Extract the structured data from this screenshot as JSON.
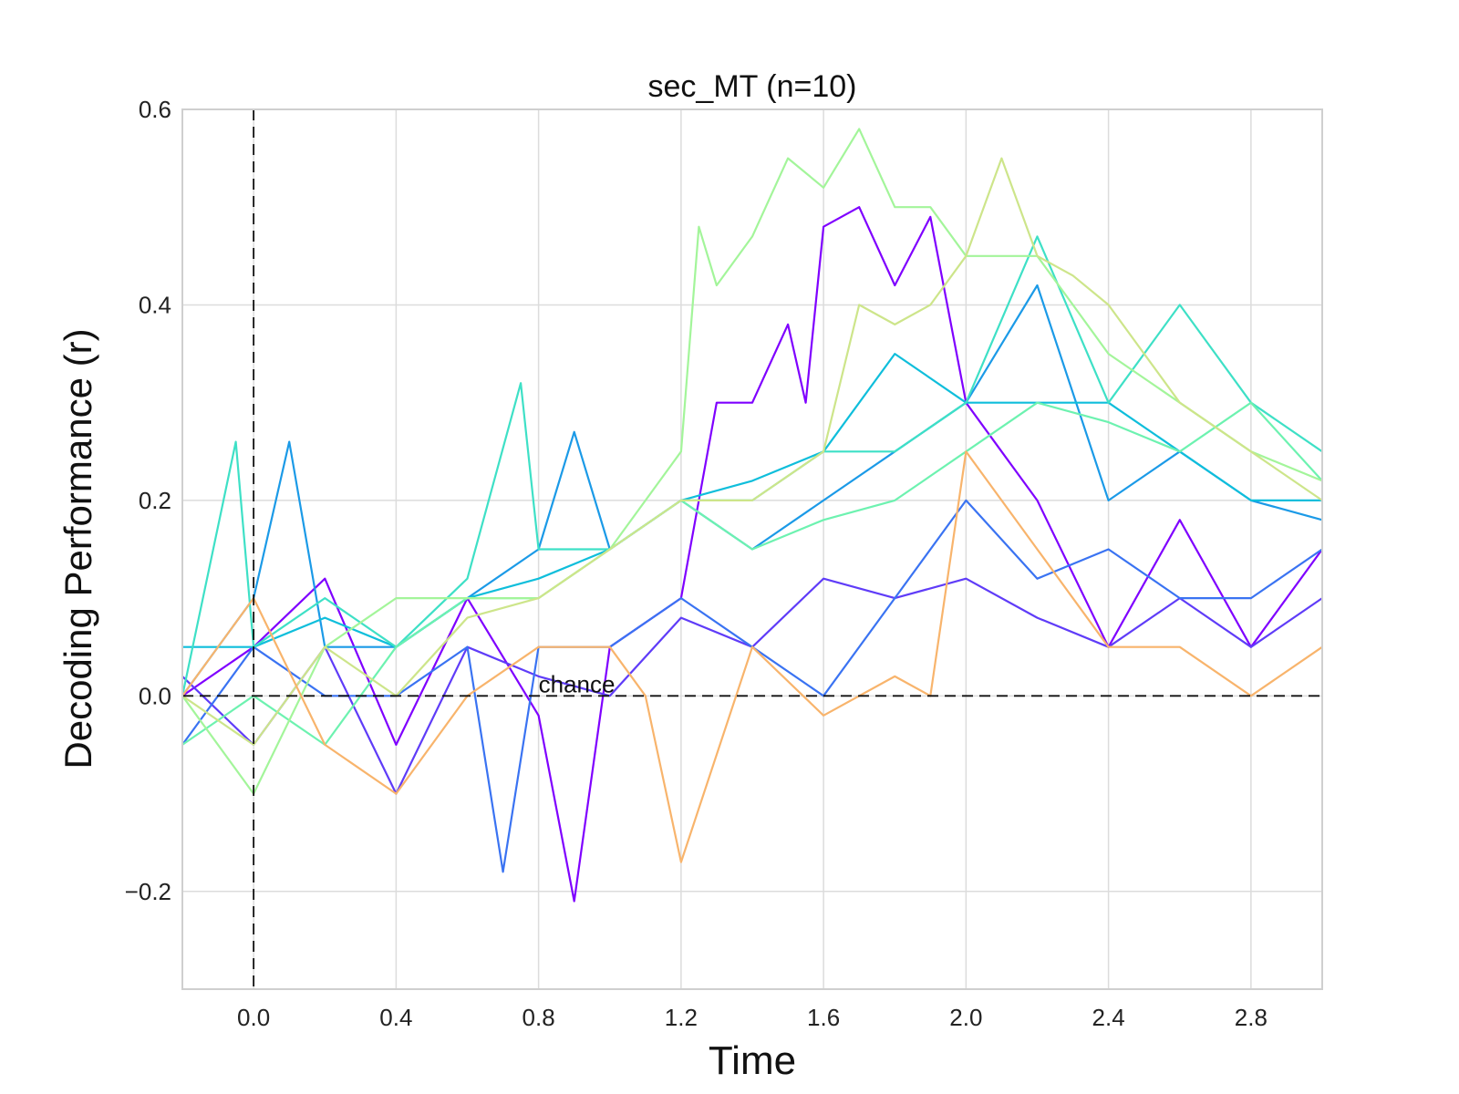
{
  "chart_data": {
    "type": "line",
    "title": "sec_MT (n=10)",
    "xlabel": "Time",
    "ylabel": "Decoding Performance (r)",
    "xlim": [
      -0.2,
      3.0
    ],
    "ylim": [
      -0.3,
      0.6
    ],
    "xticks": [
      "0.0",
      "0.4",
      "0.8",
      "1.2",
      "1.6",
      "2.0",
      "2.4",
      "2.8"
    ],
    "yticks": [
      "−0.2",
      "0.0",
      "0.2",
      "0.4",
      "0.6"
    ],
    "grid": true,
    "reference_lines": {
      "horizontal": {
        "y": 0.0,
        "label": "chance",
        "label_x": 0.8,
        "style": "dashed"
      },
      "vertical": {
        "x": 0.0,
        "style": "dashed"
      }
    },
    "series_colors": [
      "#7f00ff",
      "#5f3cf8",
      "#3a73f2",
      "#1b9ae7",
      "#0fbedb",
      "#3ee0c6",
      "#6df2b0",
      "#a3f59a",
      "#cde58a",
      "#f8b46c"
    ],
    "series": [
      {
        "color": "#7f00ff",
        "x": [
          -0.2,
          0.0,
          0.2,
          0.4,
          0.6,
          0.8,
          0.9,
          1.0,
          1.2,
          1.3,
          1.4,
          1.5,
          1.55,
          1.6,
          1.7,
          1.8,
          1.9,
          2.0,
          2.1,
          2.2,
          2.4,
          2.6,
          2.8,
          3.0
        ],
        "y": [
          0.0,
          0.05,
          0.12,
          -0.05,
          0.1,
          -0.02,
          -0.21,
          0.05,
          0.1,
          0.3,
          0.3,
          0.38,
          0.3,
          0.48,
          0.5,
          0.42,
          0.49,
          0.3,
          0.25,
          0.2,
          0.05,
          0.18,
          0.05,
          0.15
        ]
      },
      {
        "color": "#5f3cf8",
        "x": [
          -0.2,
          0.0,
          0.2,
          0.4,
          0.6,
          0.8,
          1.0,
          1.2,
          1.4,
          1.6,
          1.8,
          2.0,
          2.2,
          2.4,
          2.6,
          2.8,
          3.0
        ],
        "y": [
          0.02,
          -0.05,
          0.05,
          -0.1,
          0.05,
          0.02,
          0.0,
          0.08,
          0.05,
          0.12,
          0.1,
          0.12,
          0.08,
          0.05,
          0.1,
          0.05,
          0.1
        ]
      },
      {
        "color": "#3a73f2",
        "x": [
          -0.2,
          0.0,
          0.2,
          0.4,
          0.6,
          0.7,
          0.8,
          1.0,
          1.2,
          1.4,
          1.6,
          1.8,
          2.0,
          2.2,
          2.4,
          2.6,
          2.8,
          3.0
        ],
        "y": [
          -0.05,
          0.05,
          0.0,
          0.0,
          0.05,
          -0.18,
          0.05,
          0.05,
          0.1,
          0.05,
          0.0,
          0.1,
          0.2,
          0.12,
          0.15,
          0.1,
          0.1,
          0.15
        ]
      },
      {
        "color": "#1b9ae7",
        "x": [
          -0.2,
          0.0,
          0.1,
          0.2,
          0.4,
          0.6,
          0.8,
          0.9,
          1.0,
          1.2,
          1.4,
          1.6,
          1.8,
          2.0,
          2.2,
          2.4,
          2.6,
          2.8,
          3.0
        ],
        "y": [
          0.0,
          0.1,
          0.26,
          0.05,
          0.05,
          0.1,
          0.15,
          0.27,
          0.15,
          0.2,
          0.15,
          0.2,
          0.25,
          0.3,
          0.42,
          0.2,
          0.25,
          0.2,
          0.18
        ]
      },
      {
        "color": "#0fbedb",
        "x": [
          -0.2,
          0.0,
          0.2,
          0.4,
          0.6,
          0.8,
          1.0,
          1.2,
          1.4,
          1.6,
          1.8,
          2.0,
          2.2,
          2.4,
          2.6,
          2.8,
          3.0
        ],
        "y": [
          0.05,
          0.05,
          0.08,
          0.05,
          0.1,
          0.12,
          0.15,
          0.2,
          0.22,
          0.25,
          0.35,
          0.3,
          0.3,
          0.3,
          0.25,
          0.2,
          0.2
        ]
      },
      {
        "color": "#3ee0c6",
        "x": [
          -0.2,
          -0.05,
          0.0,
          0.2,
          0.4,
          0.6,
          0.75,
          0.8,
          1.0,
          1.2,
          1.4,
          1.6,
          1.8,
          2.0,
          2.2,
          2.4,
          2.6,
          2.8,
          3.0
        ],
        "y": [
          0.0,
          0.26,
          0.05,
          0.1,
          0.05,
          0.12,
          0.32,
          0.15,
          0.15,
          0.2,
          0.2,
          0.25,
          0.25,
          0.3,
          0.47,
          0.3,
          0.4,
          0.3,
          0.25
        ]
      },
      {
        "color": "#6df2b0",
        "x": [
          -0.2,
          0.0,
          0.2,
          0.4,
          0.6,
          0.8,
          1.0,
          1.2,
          1.4,
          1.6,
          1.8,
          2.0,
          2.2,
          2.4,
          2.6,
          2.8,
          3.0
        ],
        "y": [
          -0.05,
          0.0,
          -0.05,
          0.05,
          0.1,
          0.1,
          0.15,
          0.2,
          0.15,
          0.18,
          0.2,
          0.25,
          0.3,
          0.28,
          0.25,
          0.3,
          0.22
        ]
      },
      {
        "color": "#a3f59a",
        "x": [
          -0.2,
          0.0,
          0.2,
          0.4,
          0.6,
          0.8,
          1.0,
          1.2,
          1.25,
          1.3,
          1.4,
          1.5,
          1.6,
          1.7,
          1.8,
          1.9,
          2.0,
          2.1,
          2.2,
          2.3,
          2.4,
          2.6,
          2.8,
          3.0
        ],
        "y": [
          0.0,
          -0.1,
          0.05,
          0.1,
          0.1,
          0.1,
          0.15,
          0.25,
          0.48,
          0.42,
          0.47,
          0.55,
          0.52,
          0.58,
          0.5,
          0.5,
          0.45,
          0.45,
          0.45,
          0.4,
          0.35,
          0.3,
          0.25,
          0.22
        ]
      },
      {
        "color": "#cde58a",
        "x": [
          -0.2,
          0.0,
          0.2,
          0.4,
          0.6,
          0.8,
          1.0,
          1.2,
          1.4,
          1.6,
          1.7,
          1.8,
          1.9,
          2.0,
          2.1,
          2.2,
          2.3,
          2.4,
          2.6,
          2.8,
          3.0
        ],
        "y": [
          0.0,
          -0.05,
          0.05,
          0.0,
          0.08,
          0.1,
          0.15,
          0.2,
          0.2,
          0.25,
          0.4,
          0.38,
          0.4,
          0.45,
          0.55,
          0.45,
          0.43,
          0.4,
          0.3,
          0.25,
          0.2
        ]
      },
      {
        "color": "#f8b46c",
        "x": [
          -0.2,
          0.0,
          0.2,
          0.4,
          0.6,
          0.8,
          1.0,
          1.1,
          1.2,
          1.4,
          1.6,
          1.8,
          1.9,
          2.0,
          2.2,
          2.4,
          2.6,
          2.8,
          3.0
        ],
        "y": [
          0.0,
          0.1,
          -0.05,
          -0.1,
          0.0,
          0.05,
          0.05,
          0.0,
          -0.17,
          0.05,
          -0.02,
          0.02,
          0.0,
          0.25,
          0.15,
          0.05,
          0.05,
          0.0,
          0.05
        ]
      }
    ]
  }
}
